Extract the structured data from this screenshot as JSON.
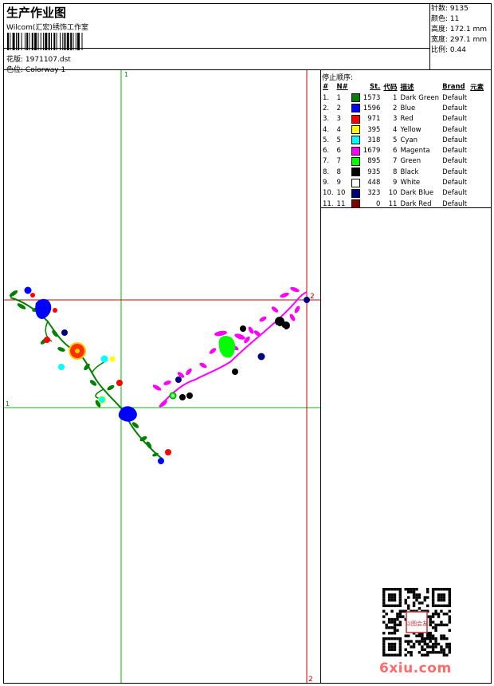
{
  "header": {
    "title": "生产作业图",
    "studio": "Wilcom(汇宏)绣饰工作室",
    "design_label": "花版:",
    "design_value": "1971107.dst",
    "colorway_label": "色位:",
    "colorway_value": "Colorway 1"
  },
  "stats": {
    "stitches": "针数: 9135",
    "colors": "颜色: 11",
    "height": "高度: 172.1 mm",
    "width": "宽度: 297.1 mm",
    "scale": "比例: 0.44"
  },
  "legend": {
    "title": "停止顺序:",
    "headers": [
      "#",
      "N#",
      "St.",
      "代码",
      "描述",
      "Brand",
      "元素"
    ],
    "rows": [
      {
        "idx": "1.",
        "n": "1",
        "st": "1573",
        "code": "1",
        "desc": "Dark Green",
        "brand": "Default",
        "color": "#008000"
      },
      {
        "idx": "2.",
        "n": "2",
        "st": "1596",
        "code": "2",
        "desc": "Blue",
        "brand": "Default",
        "color": "#0000ff"
      },
      {
        "idx": "3.",
        "n": "3",
        "st": "971",
        "code": "3",
        "desc": "Red",
        "brand": "Default",
        "color": "#ff0000"
      },
      {
        "idx": "4.",
        "n": "4",
        "st": "395",
        "code": "4",
        "desc": "Yellow",
        "brand": "Default",
        "color": "#ffff00"
      },
      {
        "idx": "5.",
        "n": "5",
        "st": "318",
        "code": "5",
        "desc": "Cyan",
        "brand": "Default",
        "color": "#00ffff"
      },
      {
        "idx": "6.",
        "n": "6",
        "st": "1679",
        "code": "6",
        "desc": "Magenta",
        "brand": "Default",
        "color": "#ff00ff"
      },
      {
        "idx": "7.",
        "n": "7",
        "st": "895",
        "code": "7",
        "desc": "Green",
        "brand": "Default",
        "color": "#00ff00"
      },
      {
        "idx": "8.",
        "n": "8",
        "st": "935",
        "code": "8",
        "desc": "Black",
        "brand": "Default",
        "color": "#000000"
      },
      {
        "idx": "9.",
        "n": "9",
        "st": "448",
        "code": "9",
        "desc": "White",
        "brand": "Default",
        "color": "#ffffff"
      },
      {
        "idx": "10.",
        "n": "10",
        "st": "323",
        "code": "10",
        "desc": "Dark Blue",
        "brand": "Default",
        "color": "#000080"
      },
      {
        "idx": "11.",
        "n": "11",
        "st": "0",
        "code": "11",
        "desc": "Dark Red",
        "brand": "Default",
        "color": "#800000"
      }
    ]
  },
  "axes": {
    "green_v_label": "1",
    "green_h_label": "1",
    "red_h_label": "2",
    "red_v_label": "2"
  },
  "watermark": "6xiu.com",
  "qr_stamp_text": "以图会友"
}
